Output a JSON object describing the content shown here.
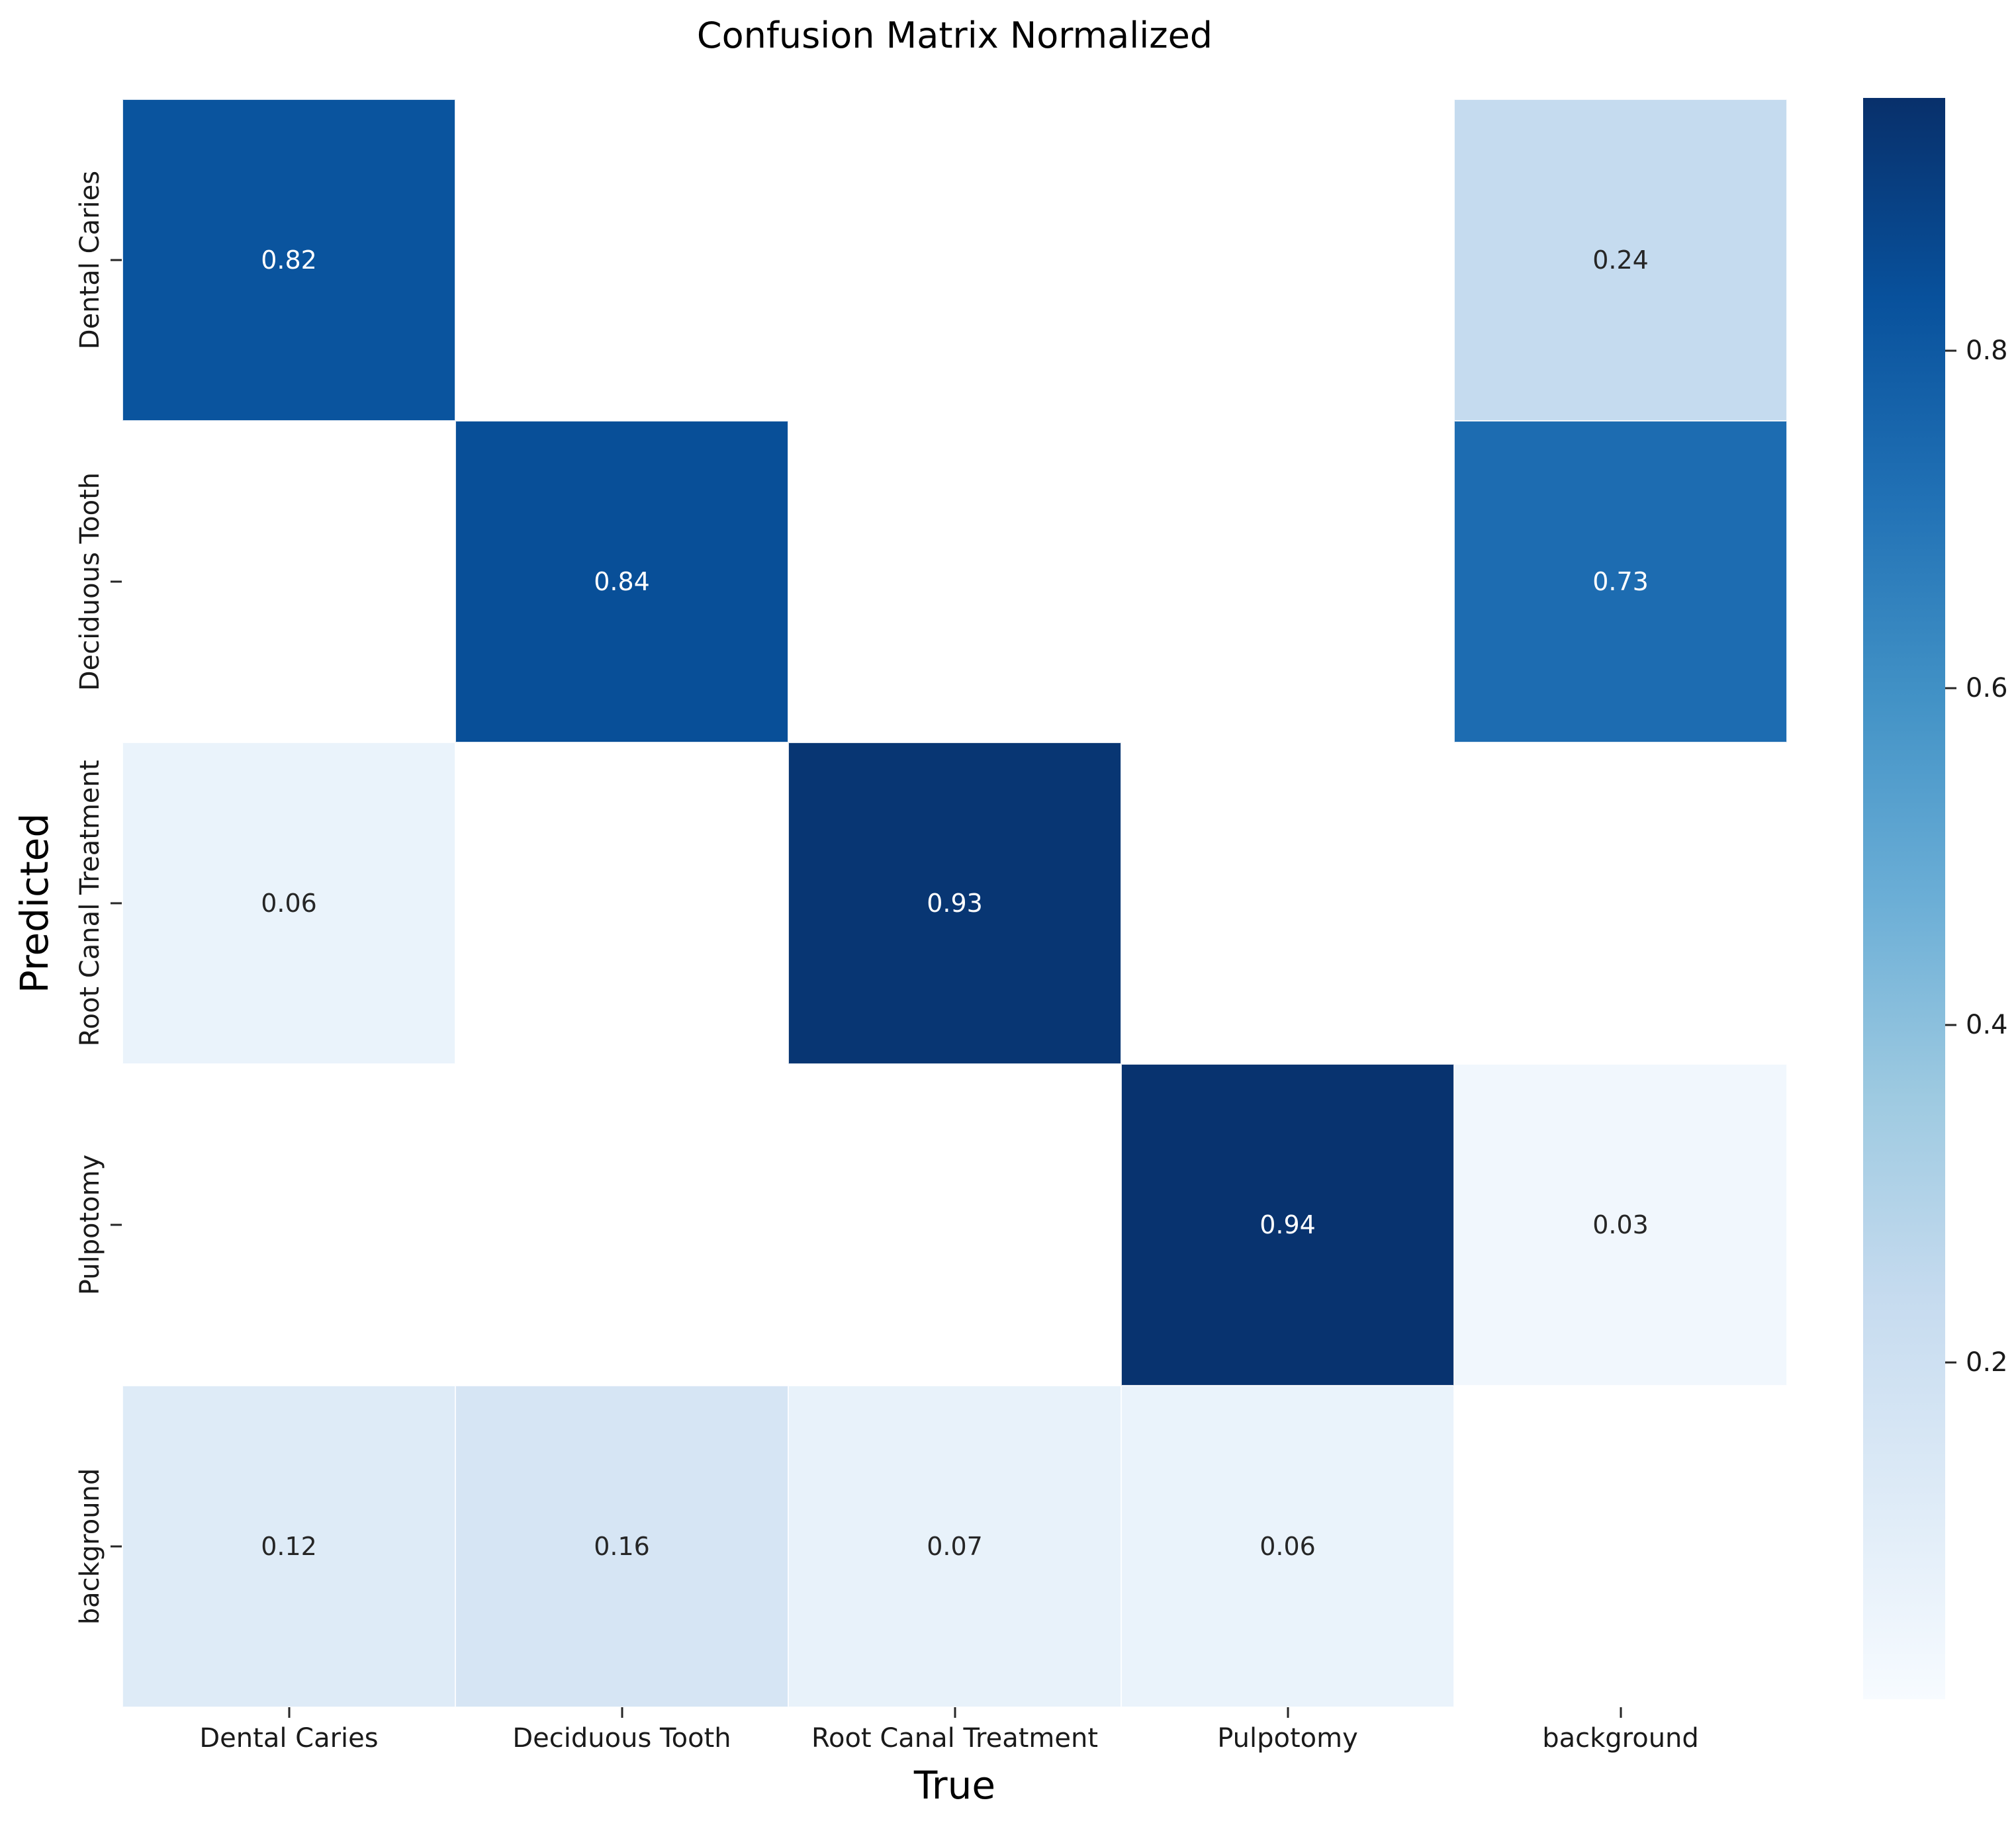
{
  "chart": {
    "title": "Confusion Matrix Normalized",
    "xlabel": "True",
    "ylabel": "Predicted"
  },
  "chart_data": {
    "type": "heatmap",
    "title": "Confusion Matrix Normalized",
    "xlabel": "True",
    "ylabel": "Predicted",
    "x_categories": [
      "Dental Caries",
      "Deciduous Tooth",
      "Root Canal Treatment",
      "Pulpotomy",
      "background"
    ],
    "y_categories": [
      "Dental Caries",
      "Deciduous Tooth",
      "Root Canal Treatment",
      "Pulpotomy",
      "background"
    ],
    "values": [
      [
        0.82,
        null,
        null,
        null,
        0.24
      ],
      [
        null,
        0.84,
        null,
        null,
        0.73
      ],
      [
        0.06,
        null,
        0.93,
        null,
        null
      ],
      [
        null,
        null,
        null,
        0.94,
        0.03
      ],
      [
        0.12,
        0.16,
        0.07,
        0.06,
        null
      ]
    ],
    "annotation_decimals": 2,
    "colormap": "Blues",
    "scale": {
      "vmin": 0,
      "vmax": 0.95
    },
    "colorbar_ticks": [
      0.2,
      0.4,
      0.6,
      0.8
    ],
    "legend_position": "right-colorbar",
    "grid": false,
    "colors": {
      "cmap_low": "#f7fbff",
      "cmap_high": "#08306b",
      "empty_cell": "#ffffff",
      "annot_dark": "#262626",
      "annot_light": "#ffffff",
      "tick": "#262626"
    }
  }
}
